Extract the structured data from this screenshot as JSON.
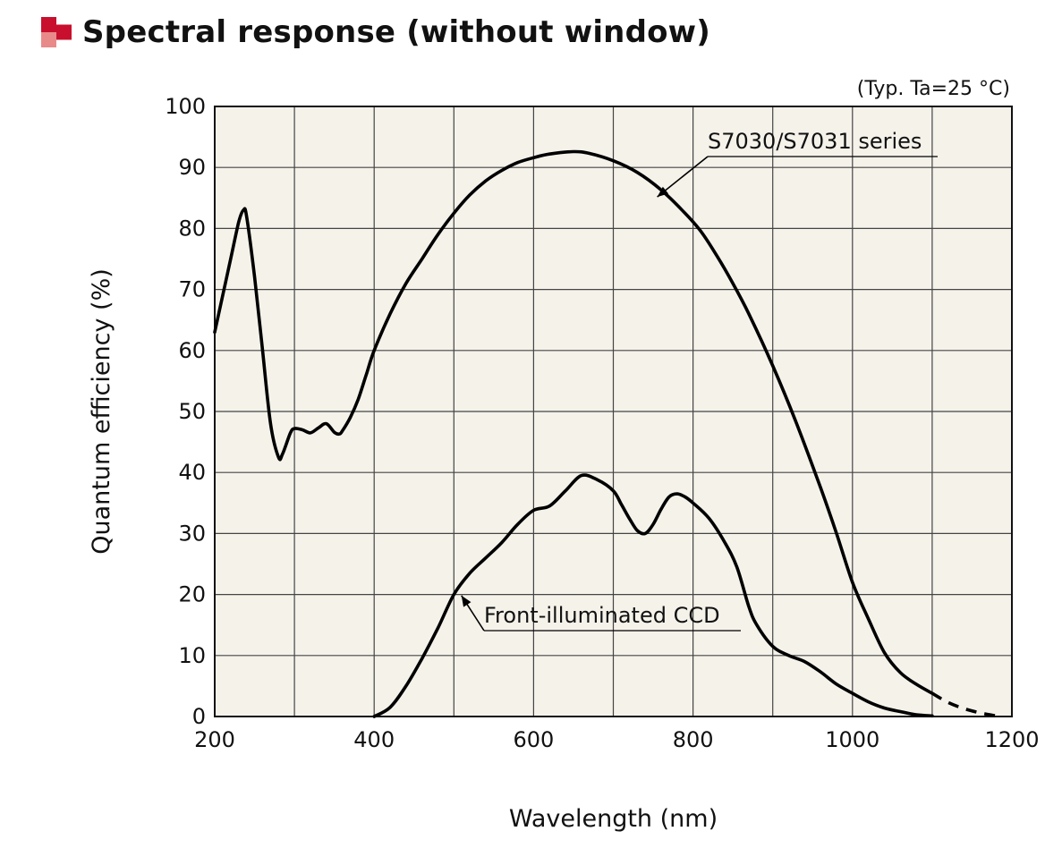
{
  "page": {
    "title": "Spectral response (without window)",
    "logo_colors": [
      "#c8102e",
      "#e88a8a"
    ]
  },
  "chart_data": {
    "type": "line",
    "title": "Spectral response (without window)",
    "condition_note": "(Typ. Ta=25 °C)",
    "xlabel": "Wavelength (nm)",
    "ylabel": "Quantum efficiency (%)",
    "xlim": [
      200,
      1200
    ],
    "ylim": [
      0,
      100
    ],
    "x_ticks": [
      200,
      400,
      600,
      800,
      1000,
      1200
    ],
    "y_ticks": [
      0,
      10,
      20,
      30,
      40,
      50,
      60,
      70,
      80,
      90,
      100
    ],
    "grid": {
      "x_step": 100,
      "y_step": 10,
      "on": true
    },
    "plot_background": "#f5f2ea",
    "series": [
      {
        "name": "S7030/S7031 series",
        "values": [
          [
            200,
            63
          ],
          [
            210,
            69
          ],
          [
            220,
            75
          ],
          [
            230,
            81
          ],
          [
            236,
            83
          ],
          [
            240,
            82
          ],
          [
            250,
            72
          ],
          [
            260,
            60
          ],
          [
            270,
            48
          ],
          [
            280,
            42.5
          ],
          [
            285,
            43
          ],
          [
            295,
            46.5
          ],
          [
            300,
            47.2
          ],
          [
            310,
            47
          ],
          [
            320,
            46.5
          ],
          [
            330,
            47.3
          ],
          [
            340,
            48
          ],
          [
            350,
            46.6
          ],
          [
            356,
            46.3
          ],
          [
            360,
            46.8
          ],
          [
            370,
            49
          ],
          [
            380,
            52
          ],
          [
            390,
            56
          ],
          [
            400,
            60
          ],
          [
            420,
            66
          ],
          [
            440,
            71
          ],
          [
            460,
            75
          ],
          [
            480,
            79
          ],
          [
            500,
            82.5
          ],
          [
            520,
            85.5
          ],
          [
            540,
            87.8
          ],
          [
            560,
            89.5
          ],
          [
            580,
            90.8
          ],
          [
            600,
            91.6
          ],
          [
            620,
            92.2
          ],
          [
            650,
            92.6
          ],
          [
            670,
            92.3
          ],
          [
            700,
            91.1
          ],
          [
            730,
            89.2
          ],
          [
            760,
            86.3
          ],
          [
            790,
            82.5
          ],
          [
            810,
            79.5
          ],
          [
            830,
            75.5
          ],
          [
            850,
            71
          ],
          [
            870,
            66
          ],
          [
            900,
            57.5
          ],
          [
            930,
            48
          ],
          [
            960,
            37.5
          ],
          [
            980,
            30
          ],
          [
            1000,
            22
          ],
          [
            1020,
            16
          ],
          [
            1040,
            10.5
          ],
          [
            1060,
            7.2
          ],
          [
            1080,
            5.3
          ],
          [
            1100,
            3.8
          ]
        ],
        "extension_dashed": [
          [
            1100,
            3.8
          ],
          [
            1120,
            2.3
          ],
          [
            1140,
            1.3
          ],
          [
            1160,
            0.6
          ],
          [
            1180,
            0.1
          ]
        ]
      },
      {
        "name": "Front-illuminated CCD",
        "values": [
          [
            400,
            0
          ],
          [
            420,
            1.5
          ],
          [
            440,
            5
          ],
          [
            460,
            9.5
          ],
          [
            480,
            14.5
          ],
          [
            500,
            20
          ],
          [
            520,
            23.5
          ],
          [
            540,
            26
          ],
          [
            560,
            28.5
          ],
          [
            580,
            31.5
          ],
          [
            600,
            33.8
          ],
          [
            620,
            34.5
          ],
          [
            640,
            37
          ],
          [
            660,
            39.5
          ],
          [
            680,
            38.8
          ],
          [
            700,
            37
          ],
          [
            710,
            34.8
          ],
          [
            720,
            32.5
          ],
          [
            730,
            30.5
          ],
          [
            740,
            30
          ],
          [
            750,
            31.5
          ],
          [
            760,
            34
          ],
          [
            770,
            36
          ],
          [
            780,
            36.5
          ],
          [
            790,
            36
          ],
          [
            800,
            35
          ],
          [
            820,
            32.5
          ],
          [
            840,
            28.5
          ],
          [
            855,
            24.5
          ],
          [
            870,
            18
          ],
          [
            880,
            15
          ],
          [
            900,
            11.5
          ],
          [
            920,
            10
          ],
          [
            940,
            9
          ],
          [
            960,
            7.3
          ],
          [
            980,
            5.3
          ],
          [
            1000,
            3.8
          ],
          [
            1020,
            2.4
          ],
          [
            1040,
            1.4
          ],
          [
            1060,
            0.8
          ],
          [
            1080,
            0.3
          ],
          [
            1100,
            0.1
          ]
        ]
      }
    ],
    "annotations": [
      {
        "text": "S7030/S7031 series",
        "points_to": [
          800,
          84
        ]
      },
      {
        "text": "Front-illuminated CCD",
        "points_to": [
          505,
          21
        ]
      }
    ]
  }
}
